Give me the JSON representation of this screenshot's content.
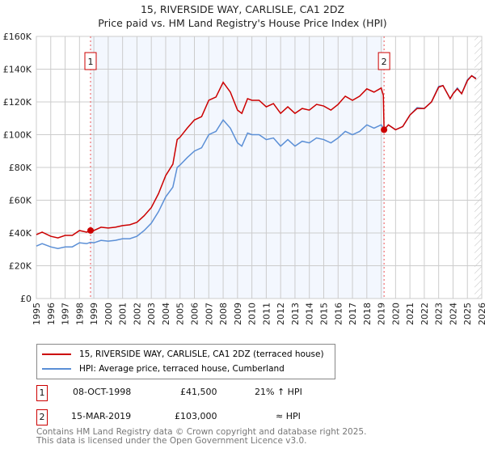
{
  "chart_data": {
    "type": "line",
    "title": "15, RIVERSIDE WAY, CARLISLE, CA1 2DZ",
    "subtitle": "Price paid vs. HM Land Registry's House Price Index (HPI)",
    "xlim": [
      1995,
      2026
    ],
    "ylim": [
      0,
      160000
    ],
    "yticks": [
      0,
      20000,
      40000,
      60000,
      80000,
      100000,
      120000,
      140000,
      160000
    ],
    "ytick_labels": [
      "£0",
      "£20K",
      "£40K",
      "£60K",
      "£80K",
      "£100K",
      "£120K",
      "£140K",
      "£160K"
    ],
    "xticks": [
      1995,
      1996,
      1997,
      1998,
      1999,
      2000,
      2001,
      2002,
      2003,
      2004,
      2005,
      2006,
      2007,
      2008,
      2009,
      2010,
      2011,
      2012,
      2013,
      2014,
      2015,
      2016,
      2017,
      2018,
      2019,
      2020,
      2021,
      2022,
      2023,
      2024,
      2025,
      2026
    ],
    "grid": true,
    "series": [
      {
        "name": "15, RIVERSIDE WAY, CARLISLE, CA1 2DZ (terraced house)",
        "color": "#cc0000",
        "x": [
          1995,
          1995.4,
          1996,
          1996.5,
          1997,
          1997.5,
          1998,
          1998.5,
          1998.77,
          1999,
          1999.5,
          2000,
          2000.5,
          2001,
          2001.5,
          2002,
          2002.5,
          2003,
          2003.5,
          2004,
          2004.5,
          2004.8,
          2005,
          2005.5,
          2006,
          2006.5,
          2007,
          2007.5,
          2008,
          2008.5,
          2009,
          2009.3,
          2009.7,
          2010,
          2010.5,
          2011,
          2011.5,
          2012,
          2012.5,
          2013,
          2013.5,
          2014,
          2014.5,
          2015,
          2015.5,
          2016,
          2016.5,
          2017,
          2017.5,
          2018,
          2018.5,
          2019,
          2019.15,
          2019.2,
          2019.5,
          2020,
          2020.5,
          2021,
          2021.5,
          2022,
          2022.5,
          2023,
          2023.3,
          2023.8,
          2024,
          2024.3,
          2024.6,
          2025,
          2025.3,
          2025.6
        ],
        "y": [
          39000,
          40500,
          38000,
          37000,
          38500,
          38500,
          41500,
          40500,
          41500,
          41500,
          43500,
          43000,
          43500,
          44500,
          45000,
          46500,
          50500,
          55500,
          64000,
          75000,
          82000,
          97000,
          98500,
          104000,
          109000,
          111000,
          121000,
          123000,
          132000,
          126000,
          115000,
          113000,
          122000,
          121000,
          121000,
          117000,
          119000,
          113000,
          117000,
          113000,
          116000,
          115000,
          118500,
          117500,
          115000,
          118500,
          123500,
          121000,
          123500,
          128000,
          126000,
          128500,
          124000,
          103000,
          106000,
          103000,
          105000,
          112000,
          116000,
          116000,
          120000,
          129000,
          130000,
          122000,
          125000,
          128000,
          125000,
          133000,
          136000,
          134000
        ]
      },
      {
        "name": "HPI: Average price, terraced house, Cumberland",
        "color": "#5b8fd6",
        "x": [
          1995,
          1995.4,
          1996,
          1996.5,
          1997,
          1997.5,
          1998,
          1998.5,
          1998.77,
          1999,
          1999.5,
          2000,
          2000.5,
          2001,
          2001.5,
          2002,
          2002.5,
          2003,
          2003.5,
          2004,
          2004.5,
          2004.8,
          2005,
          2005.5,
          2006,
          2006.5,
          2007,
          2007.5,
          2008,
          2008.5,
          2009,
          2009.3,
          2009.7,
          2010,
          2010.5,
          2011,
          2011.5,
          2012,
          2012.5,
          2013,
          2013.5,
          2014,
          2014.5,
          2015,
          2015.5,
          2016,
          2016.5,
          2017,
          2017.5,
          2018,
          2018.5,
          2019,
          2019.15,
          2019.2,
          2019.5,
          2020,
          2020.5,
          2021,
          2021.5,
          2022,
          2022.5,
          2023,
          2023.3,
          2023.8,
          2024,
          2024.3,
          2024.6,
          2025,
          2025.3,
          2025.6
        ],
        "y": [
          32000,
          33500,
          31500,
          30500,
          31500,
          31500,
          34000,
          33500,
          34300,
          34000,
          35500,
          35000,
          35500,
          36500,
          36500,
          38000,
          41500,
          46000,
          53000,
          62000,
          68000,
          80000,
          81500,
          86000,
          90000,
          92000,
          100000,
          102000,
          109000,
          104000,
          95000,
          93000,
          101000,
          100000,
          100000,
          97000,
          98000,
          93000,
          97000,
          93000,
          96000,
          95000,
          98000,
          97000,
          95000,
          98000,
          102000,
          100000,
          102000,
          106000,
          104000,
          106000,
          104000,
          103000,
          106000,
          103000,
          105000,
          112000,
          116500,
          116000,
          120000,
          129500,
          130000,
          122000,
          125000,
          128500,
          125000,
          133500,
          136000,
          134500
        ]
      }
    ],
    "sales": [
      {
        "label": "1",
        "x": 1998.77,
        "y": 41500,
        "date": "08-OCT-1998",
        "price": "£41,500",
        "hpi": "21% ↑ HPI"
      },
      {
        "label": "2",
        "x": 2019.2,
        "y": 103000,
        "date": "15-MAR-2019",
        "price": "£103,000",
        "hpi": "≈ HPI"
      }
    ],
    "shaded_range": [
      1998.77,
      2019.2
    ],
    "hatch_from": 2025.5
  },
  "legend": {
    "red": "15, RIVERSIDE WAY, CARLISLE, CA1 2DZ (terraced house)",
    "blue": "HPI: Average price, terraced house, Cumberland"
  },
  "footer": {
    "line1": "Contains HM Land Registry data © Crown copyright and database right 2025.",
    "line2": "This data is licensed under the Open Government Licence v3.0."
  }
}
